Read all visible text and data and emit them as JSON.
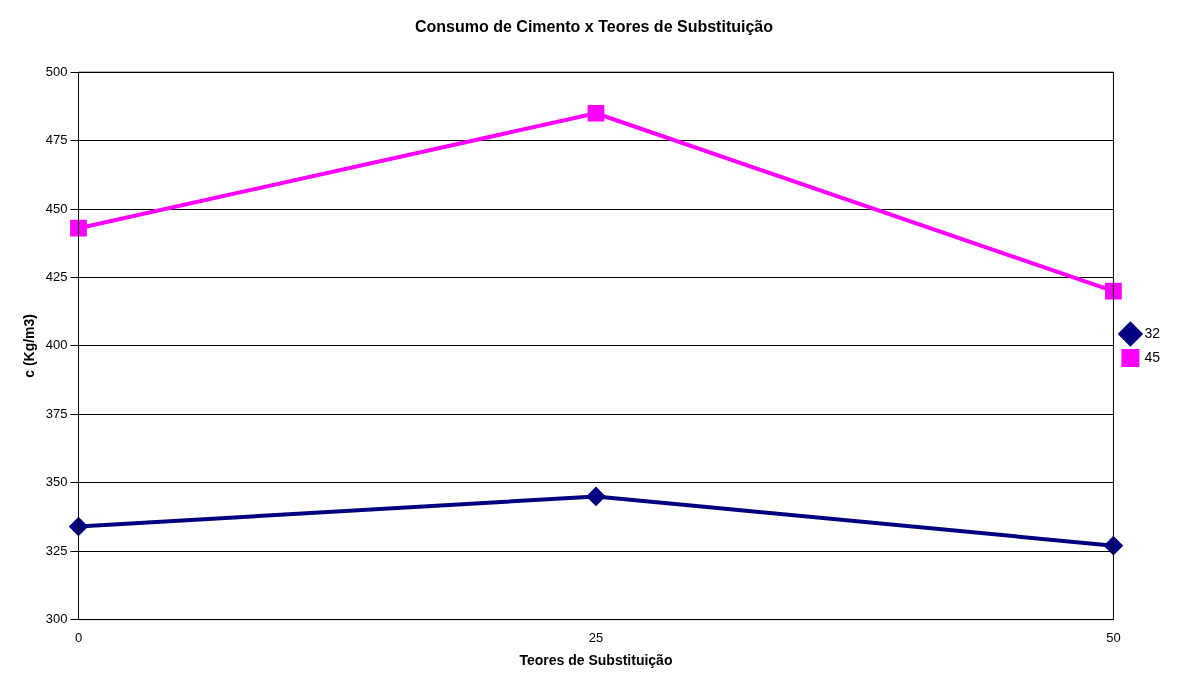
{
  "chart_data": {
    "type": "line",
    "title": "Consumo de Cimento x Teores de Substituição",
    "xlabel": "Teores de Substituição",
    "ylabel": "c (Kg/m3)",
    "x": [
      0,
      25,
      50
    ],
    "series": [
      {
        "name": "32",
        "color": "#000080",
        "values": [
          334,
          345,
          327
        ],
        "marker": "diamond"
      },
      {
        "name": "45",
        "color": "#ff00ff",
        "values": [
          443,
          485,
          420
        ],
        "marker": "square"
      }
    ],
    "xlim": [
      0,
      50
    ],
    "xticks": [
      0,
      25,
      50
    ],
    "ylim": [
      300,
      500
    ],
    "yticks": [
      300,
      325,
      350,
      375,
      400,
      425,
      450,
      475,
      500
    ],
    "grid": "y",
    "legend": "right",
    "line_style": "solid"
  }
}
